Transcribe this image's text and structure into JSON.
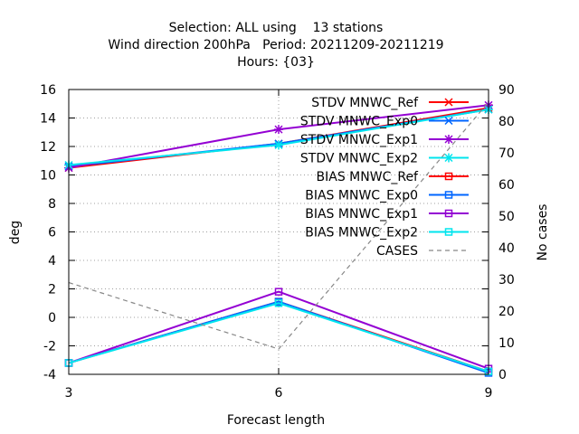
{
  "chart_data": {
    "type": "line",
    "title": [
      "Selection: ALL using    13 stations",
      "Wind direction 200hPa   Period: 20211209-20211219",
      "Hours: {03}"
    ],
    "xlabel": "Forecast length",
    "ylabel": "deg",
    "y2label": "No cases",
    "x": [
      3,
      6,
      9
    ],
    "xlim": [
      3,
      9
    ],
    "xticks": [
      3,
      6,
      9
    ],
    "ylim": [
      -4,
      16
    ],
    "yticks": [
      -4,
      -2,
      0,
      2,
      4,
      6,
      8,
      10,
      12,
      14,
      16
    ],
    "y2lim": [
      0,
      90
    ],
    "y2ticks": [
      0,
      10,
      20,
      30,
      40,
      50,
      60,
      70,
      80,
      90
    ],
    "grid": true,
    "legend_position": "top-right",
    "series": [
      {
        "name": "STDV MNWC_Ref",
        "color": "#ff0000",
        "marker": "x-cross",
        "axis": "y",
        "values": [
          10.5,
          12.2,
          14.7
        ]
      },
      {
        "name": "STDV MNWC_Exp0",
        "color": "#0066ff",
        "marker": "x-cross",
        "axis": "y",
        "values": [
          10.6,
          12.2,
          14.6
        ]
      },
      {
        "name": "STDV MNWC_Exp1",
        "color": "#9400d3",
        "marker": "star",
        "axis": "y",
        "values": [
          10.5,
          13.2,
          14.9
        ]
      },
      {
        "name": "STDV MNWC_Exp2",
        "color": "#00e5ee",
        "marker": "star",
        "axis": "y",
        "values": [
          10.7,
          12.1,
          14.6
        ]
      },
      {
        "name": "BIAS MNWC_Ref",
        "color": "#ff0000",
        "marker": "square",
        "axis": "y",
        "values": [
          -3.2,
          1.1,
          -3.8
        ]
      },
      {
        "name": "BIAS MNWC_Exp0",
        "color": "#0066ff",
        "marker": "square",
        "axis": "y",
        "values": [
          -3.2,
          1.1,
          -3.9
        ]
      },
      {
        "name": "BIAS MNWC_Exp1",
        "color": "#9400d3",
        "marker": "square",
        "axis": "y",
        "values": [
          -3.2,
          1.8,
          -3.6
        ]
      },
      {
        "name": "BIAS MNWC_Exp2",
        "color": "#00e5ee",
        "marker": "square",
        "axis": "y",
        "values": [
          -3.2,
          1.0,
          -3.8
        ]
      },
      {
        "name": "CASES",
        "color": "#888888",
        "marker": "none",
        "dash": true,
        "axis": "y2",
        "values": [
          29,
          8,
          86
        ]
      }
    ]
  }
}
